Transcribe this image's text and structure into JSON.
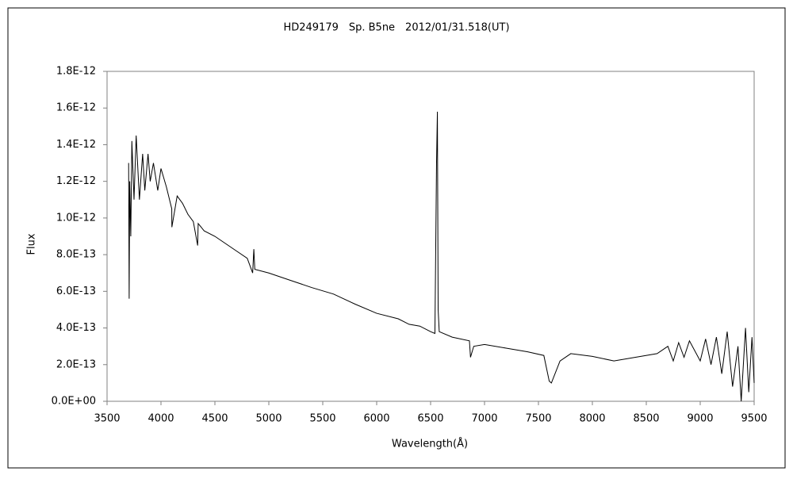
{
  "chart_data": {
    "type": "line",
    "title": "HD249179　Sp. B5ne　2012/01/31.518(UT)",
    "x_label": "Wavelength(Å)",
    "y_label": "Flux",
    "color": "#000000",
    "x": [
      3700,
      3705,
      3710,
      3720,
      3730,
      3750,
      3770,
      3800,
      3830,
      3850,
      3880,
      3900,
      3930,
      3970,
      4000,
      4050,
      4100,
      4101,
      4150,
      4200,
      4250,
      4300,
      4340,
      4345,
      4400,
      4500,
      4600,
      4700,
      4800,
      4850,
      4861,
      4870,
      5000,
      5200,
      5400,
      5600,
      5800,
      6000,
      6200,
      6300,
      6400,
      6500,
      6540,
      6555,
      6563,
      6570,
      6580,
      6700,
      6860,
      6870,
      6900,
      7000,
      7200,
      7400,
      7550,
      7600,
      7620,
      7700,
      7800,
      8000,
      8200,
      8400,
      8600,
      8700,
      8750,
      8800,
      8850,
      8900,
      9000,
      9050,
      9100,
      9150,
      9200,
      9250,
      9300,
      9350,
      9380,
      9420,
      9450,
      9480,
      9500
    ],
    "values": [
      1.3e-12,
      5.6e-13,
      1.2e-12,
      9e-13,
      1.42e-12,
      1.1e-12,
      1.45e-12,
      1.1e-12,
      1.35e-12,
      1.15e-12,
      1.35e-12,
      1.2e-12,
      1.3e-12,
      1.15e-12,
      1.27e-12,
      1.17e-12,
      1.05e-12,
      9.5e-13,
      1.12e-12,
      1.08e-12,
      1.02e-12,
      9.8e-13,
      8.5e-13,
      9.7e-13,
      9.3e-13,
      9e-13,
      8.6e-13,
      8.2e-13,
      7.8e-13,
      7e-13,
      8.3e-13,
      7.2e-13,
      7e-13,
      6.6e-13,
      6.2e-13,
      5.85e-13,
      5.3e-13,
      4.8e-13,
      4.5e-13,
      4.2e-13,
      4.1e-13,
      3.8e-13,
      3.7e-13,
      1.3e-12,
      1.58e-12,
      5e-13,
      3.8e-13,
      3.5e-13,
      3.3e-13,
      2.4e-13,
      3e-13,
      3.1e-13,
      2.9e-13,
      2.7e-13,
      2.5e-13,
      1.1e-13,
      1e-13,
      2.2e-13,
      2.6e-13,
      2.45e-13,
      2.2e-13,
      2.4e-13,
      2.6e-13,
      3e-13,
      2.2e-13,
      3.2e-13,
      2.4e-13,
      3.3e-13,
      2.2e-13,
      3.4e-13,
      2e-13,
      3.5e-13,
      1.5e-13,
      3.8e-13,
      8e-14,
      3e-13,
      0,
      4e-13,
      5e-14,
      3.5e-13,
      1e-13
    ],
    "xlim": [
      3500,
      9500
    ],
    "xticks": [
      3500,
      4000,
      4500,
      5000,
      5500,
      6000,
      6500,
      7000,
      7500,
      8000,
      8500,
      9000,
      9500
    ],
    "ylim": [
      0,
      1.8e-12
    ],
    "yticks": [
      {
        "value": 0,
        "label": "0.0E+00"
      },
      {
        "value": 2e-13,
        "label": "2.0E-13"
      },
      {
        "value": 4e-13,
        "label": "4.0E-13"
      },
      {
        "value": 6e-13,
        "label": "6.0E-13"
      },
      {
        "value": 8e-13,
        "label": "8.0E-13"
      },
      {
        "value": 1e-12,
        "label": "1.0E-12"
      },
      {
        "value": 1.2e-12,
        "label": "1.2E-12"
      },
      {
        "value": 1.4e-12,
        "label": "1.4E-12"
      },
      {
        "value": 1.6e-12,
        "label": "1.6E-12"
      },
      {
        "value": 1.8e-12,
        "label": "1.8E-12"
      }
    ],
    "grid": false
  }
}
